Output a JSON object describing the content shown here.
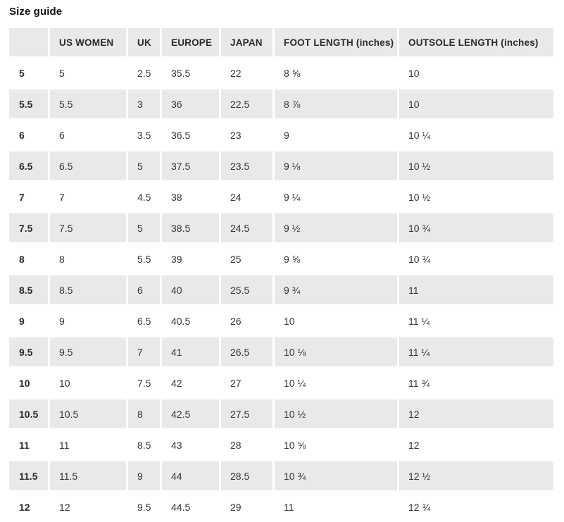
{
  "page_title": "Size guide",
  "colors": {
    "row_alt_bg": "#e9e9e9",
    "header_bg": "#e9e9e9",
    "text": "#333333",
    "bold_text": "#2b2b2b",
    "background": "#ffffff"
  },
  "table": {
    "columns": [
      "",
      "US WOMEN",
      "UK",
      "EUROPE",
      "JAPAN",
      "FOOT LENGTH (inches)",
      "OUTSOLE LENGTH (inches)"
    ],
    "rows": [
      [
        "5",
        "5",
        "2.5",
        "35.5",
        "22",
        "8 ⅝",
        "10"
      ],
      [
        "5.5",
        "5.5",
        "3",
        "36",
        "22.5",
        "8 ⅞",
        "10"
      ],
      [
        "6",
        "6",
        "3.5",
        "36.5",
        "23",
        "9",
        "10 ¼"
      ],
      [
        "6.5",
        "6.5",
        "5",
        "37.5",
        "23.5",
        "9 ⅛",
        "10 ½"
      ],
      [
        "7",
        "7",
        "4.5",
        "38",
        "24",
        "9 ¼",
        "10 ½"
      ],
      [
        "7.5",
        "7.5",
        "5",
        "38.5",
        "24.5",
        "9 ½",
        "10 ¾"
      ],
      [
        "8",
        "8",
        "5.5",
        "39",
        "25",
        "9 ⅝",
        "10 ¾"
      ],
      [
        "8.5",
        "8.5",
        "6",
        "40",
        "25.5",
        "9 ¾",
        "11"
      ],
      [
        "9",
        "9",
        "6.5",
        "40.5",
        "26",
        "10",
        "11 ¼"
      ],
      [
        "9.5",
        "9.5",
        "7",
        "41",
        "26.5",
        "10 ⅛",
        "11 ¼"
      ],
      [
        "10",
        "10",
        "7.5",
        "42",
        "27",
        "10 ¼",
        "11 ¾"
      ],
      [
        "10.5",
        "10.5",
        "8",
        "42.5",
        "27.5",
        "10 ½",
        "12"
      ],
      [
        "11",
        "11",
        "8.5",
        "43",
        "28",
        "10 ⅝",
        "12"
      ],
      [
        "11.5",
        "11.5",
        "9",
        "44",
        "28.5",
        "10 ¾",
        "12 ½"
      ],
      [
        "12",
        "12",
        "9.5",
        "44.5",
        "29",
        "11",
        "12 ¾"
      ]
    ]
  }
}
